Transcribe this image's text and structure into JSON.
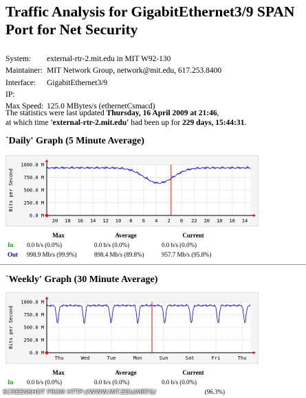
{
  "page": {
    "title": "Traffic Analysis for GigabitEthernet3/9 SPAN Port for Net Security"
  },
  "info": [
    {
      "label": "System:",
      "value": "external-rtr-2.mit.edu in MIT W92-130"
    },
    {
      "label": "Maintainer:",
      "value": "MIT Network Group, network@mit.edu, 617.253.8400"
    },
    {
      "label": "Interface:",
      "value": "GigabitEthernet3/9"
    },
    {
      "label": "IP:",
      "value": ""
    },
    {
      "label": "Max Speed:",
      "value": "125.0 MBytes/s (ethernetCsmacd)"
    }
  ],
  "stats": {
    "p1": "The statistics were last updated ",
    "updated": "Thursday, 16 April 2009 at 21:46",
    "p2": ",",
    "p3": "at which time ",
    "router": "'external-rtr-2.mit.edu'",
    "p4": " had been up for ",
    "uptime": "229 days, 15:44:31",
    "p5": "."
  },
  "daily": {
    "heading": "`Daily' Graph (5 Minute Average)",
    "ylabel": "Bits per Second",
    "yticks": [
      "1000.0 M",
      "750.0 M",
      "500.0 M",
      "250.0 M",
      "0.0 M"
    ],
    "xticks": [
      "20",
      "18",
      "16",
      "14",
      "12",
      "10",
      "8",
      "6",
      "4",
      "2",
      "0",
      "22",
      "20",
      "18",
      "16",
      "14"
    ],
    "headers": [
      "Max",
      "Average",
      "Current"
    ],
    "in": {
      "label": "In",
      "max": "0.0 b/s (0.0%)",
      "avg": "0.0 b/s (0.0%)",
      "cur": "0.0 b/s (0.0%)"
    },
    "out": {
      "label": "Out",
      "max": "998.9 Mb/s (99.9%)",
      "avg": "898.4 Mb/s (89.8%)",
      "cur": "957.7 Mb/s (95.8%)"
    }
  },
  "weekly": {
    "heading": "`Weekly' Graph (30 Minute Average)",
    "ylabel": "Bits per Second",
    "yticks": [
      "1000.0 M",
      "750.0 M",
      "500.0 M",
      "250.0 M",
      "0.0 M"
    ],
    "xticks": [
      "Thu",
      "Wed",
      "Tue",
      "Mon",
      "Sun",
      "Sat",
      "Fri",
      "Thu"
    ],
    "headers": [
      "Max",
      "Average",
      "Current"
    ],
    "in": {
      "label": "In",
      "max": "0.0 b/s (0.0%)",
      "avg": "0.0 b/s (0.0%)",
      "cur": "0.0 b/s (0.0%)"
    },
    "out_cur": "(96.3%)"
  },
  "watermark": "SCREENSHOT FROM HTTP://WWW.MIT.EDU/MRTG/",
  "colors": {
    "line": "#0000ff",
    "now_marker": "#ff0000",
    "grid": "#d8d8d8",
    "panel": "#f5f5f5",
    "in": "#00aa00",
    "out": "#0000ee"
  }
}
